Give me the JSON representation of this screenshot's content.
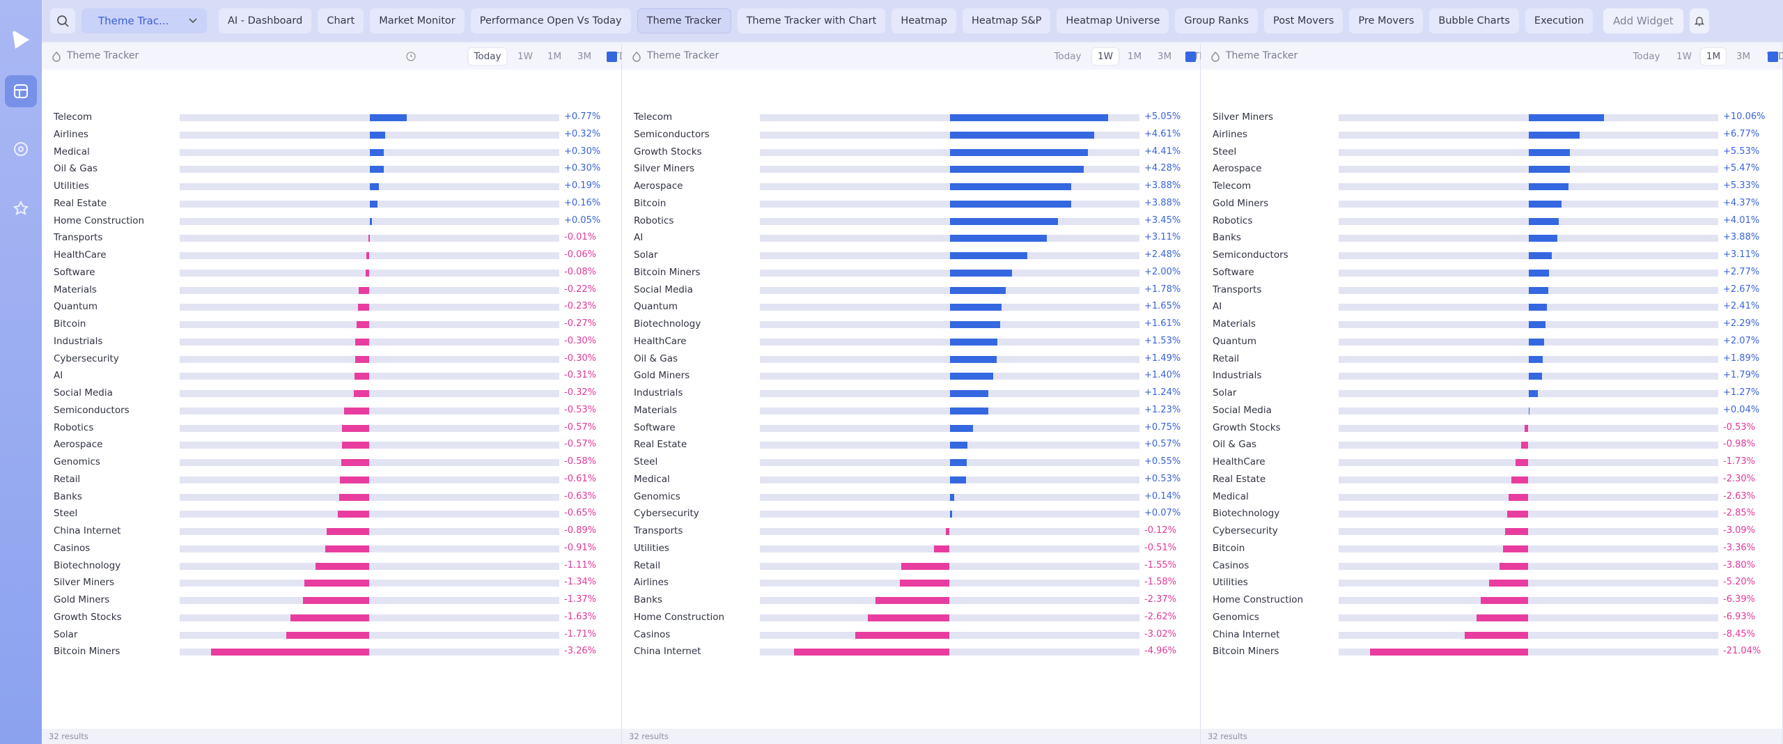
{
  "toolbar": {
    "dropdown": "Theme Trac...",
    "tabs": [
      "AI - Dashboard",
      "Chart",
      "Market Monitor",
      "Performance Open Vs Today",
      "Theme Tracker",
      "Theme Tracker with Chart",
      "Heatmap",
      "Heatmap S&P",
      "Heatmap Universe",
      "Group Ranks",
      "Post Movers",
      "Pre Movers",
      "Bubble Charts",
      "Execution"
    ],
    "active_tab": 4,
    "add_widget": "Add Widget"
  },
  "panels": [
    {
      "title": "Theme Tracker",
      "timeframes": [
        "Today",
        "1W",
        "1M",
        "3M",
        "YTD"
      ],
      "active_timeframe": 0,
      "names": [
        "Telecom",
        "Airlines",
        "Medical",
        "Oil & Gas",
        "Utilities",
        "Real Estate",
        "Home Construction",
        "Transports",
        "HealthCare",
        "Software",
        "Materials",
        "Quantum",
        "Bitcoin",
        "Industrials",
        "Cybersecurity",
        "AI",
        "Social Media",
        "Semiconductors",
        "Robotics",
        "Aerospace",
        "Genomics",
        "Retail",
        "Banks",
        "Steel",
        "China Internet",
        "Casinos",
        "Biotechnology",
        "Silver Miners",
        "Gold Miners",
        "Growth Stocks",
        "Solar",
        "Bitcoin Miners"
      ],
      "values": [
        0.77,
        0.32,
        0.3,
        0.3,
        0.19,
        0.16,
        0.05,
        -0.01,
        -0.06,
        -0.08,
        -0.22,
        -0.23,
        -0.27,
        -0.3,
        -0.3,
        -0.31,
        -0.32,
        -0.53,
        -0.57,
        -0.57,
        -0.58,
        -0.61,
        -0.63,
        -0.65,
        -0.89,
        -0.91,
        -1.11,
        -1.34,
        -1.37,
        -1.63,
        -1.71,
        -3.26
      ],
      "value_labels": [
        "+0.77%",
        "+0.32%",
        "+0.30%",
        "+0.30%",
        "+0.19%",
        "+0.16%",
        "+0.05%",
        "-0.01%",
        "-0.06%",
        "-0.08%",
        "-0.22%",
        "-0.23%",
        "-0.27%",
        "-0.30%",
        "-0.30%",
        "-0.31%",
        "-0.32%",
        "-0.53%",
        "-0.57%",
        "-0.57%",
        "-0.58%",
        "-0.61%",
        "-0.63%",
        "-0.65%",
        "-0.89%",
        "-0.91%",
        "-1.11%",
        "-1.34%",
        "-1.37%",
        "-1.63%",
        "-1.71%",
        "-3.26%"
      ],
      "footer": "32 results"
    },
    {
      "title": "Theme Tracker",
      "timeframes": [
        "Today",
        "1W",
        "1M",
        "3M",
        "YTD"
      ],
      "active_timeframe": 1,
      "names": [
        "Telecom",
        "Semiconductors",
        "Growth Stocks",
        "Silver Miners",
        "Aerospace",
        "Bitcoin",
        "Robotics",
        "AI",
        "Solar",
        "Bitcoin Miners",
        "Social Media",
        "Quantum",
        "Biotechnology",
        "HealthCare",
        "Oil & Gas",
        "Gold Miners",
        "Industrials",
        "Materials",
        "Software",
        "Real Estate",
        "Steel",
        "Medical",
        "Genomics",
        "Cybersecurity",
        "Transports",
        "Utilities",
        "Retail",
        "Airlines",
        "Banks",
        "Home Construction",
        "Casinos",
        "China Internet"
      ],
      "values": [
        5.05,
        4.61,
        4.41,
        4.28,
        3.88,
        3.88,
        3.45,
        3.11,
        2.48,
        2.0,
        1.78,
        1.65,
        1.61,
        1.53,
        1.49,
        1.4,
        1.24,
        1.23,
        0.75,
        0.57,
        0.55,
        0.53,
        0.14,
        0.07,
        -0.12,
        -0.51,
        -1.55,
        -1.58,
        -2.37,
        -2.62,
        -3.02,
        -4.96
      ],
      "value_labels": [
        "+5.05%",
        "+4.61%",
        "+4.41%",
        "+4.28%",
        "+3.88%",
        "+3.88%",
        "+3.45%",
        "+3.11%",
        "+2.48%",
        "+2.00%",
        "+1.78%",
        "+1.65%",
        "+1.61%",
        "+1.53%",
        "+1.49%",
        "+1.40%",
        "+1.24%",
        "+1.23%",
        "+0.75%",
        "+0.57%",
        "+0.55%",
        "+0.53%",
        "+0.14%",
        "+0.07%",
        "-0.12%",
        "-0.51%",
        "-1.55%",
        "-1.58%",
        "-2.37%",
        "-2.62%",
        "-3.02%",
        "-4.96%"
      ],
      "footer": "32 results"
    },
    {
      "title": "Theme Tracker",
      "timeframes": [
        "Today",
        "1W",
        "1M",
        "3M",
        "YTD"
      ],
      "active_timeframe": 2,
      "names": [
        "Silver Miners",
        "Airlines",
        "Steel",
        "Aerospace",
        "Telecom",
        "Gold Miners",
        "Robotics",
        "Banks",
        "Semiconductors",
        "Software",
        "Transports",
        "AI",
        "Materials",
        "Quantum",
        "Retail",
        "Industrials",
        "Solar",
        "Social Media",
        "Growth Stocks",
        "Oil & Gas",
        "HealthCare",
        "Real Estate",
        "Medical",
        "Biotechnology",
        "Cybersecurity",
        "Bitcoin",
        "Casinos",
        "Utilities",
        "Home Construction",
        "Genomics",
        "China Internet",
        "Bitcoin Miners"
      ],
      "values": [
        10.06,
        6.77,
        5.53,
        5.47,
        5.33,
        4.37,
        4.01,
        3.88,
        3.11,
        2.77,
        2.67,
        2.41,
        2.29,
        2.07,
        1.89,
        1.79,
        1.27,
        0.04,
        -0.53,
        -0.98,
        -1.73,
        -2.3,
        -2.63,
        -2.85,
        -3.09,
        -3.36,
        -3.8,
        -5.2,
        -6.39,
        -6.93,
        -8.45,
        -21.04
      ],
      "value_labels": [
        "+10.06%",
        "+6.77%",
        "+5.53%",
        "+5.47%",
        "+5.33%",
        "+4.37%",
        "+4.01%",
        "+3.88%",
        "+3.11%",
        "+2.77%",
        "+2.67%",
        "+2.41%",
        "+2.29%",
        "+2.07%",
        "+1.89%",
        "+1.79%",
        "+1.27%",
        "+0.04%",
        "-0.53%",
        "-0.98%",
        "-1.73%",
        "-2.30%",
        "-2.63%",
        "-2.85%",
        "-3.09%",
        "-3.36%",
        "-3.80%",
        "-5.20%",
        "-6.39%",
        "-6.93%",
        "-8.45%",
        "-21.04%"
      ],
      "footer": "32 results"
    }
  ]
}
